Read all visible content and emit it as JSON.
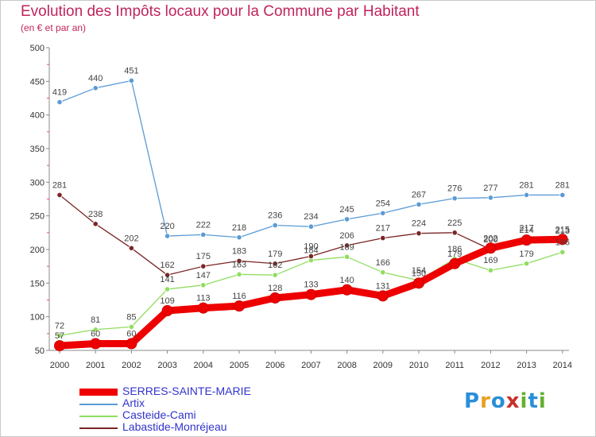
{
  "title": "Evolution des Impôts locaux pour la Commune par Habitant",
  "subtitle": "(en € et par an)",
  "logo": {
    "text": "Proxiti",
    "letters": [
      "P",
      "r",
      "o",
      "x",
      "i",
      "t",
      "i"
    ],
    "colors": [
      "#2a8fd8",
      "#e8a020",
      "#2a8fd8",
      "#c8302a",
      "#64b030",
      "#2a8fd8",
      "#64b030"
    ]
  },
  "chart_data": {
    "type": "line",
    "title": "Evolution des Impôts locaux pour la Commune par Habitant",
    "subtitle": "(en € et par an)",
    "xlabel": "",
    "ylabel": "",
    "ylim": [
      50,
      500
    ],
    "yticks": [
      "50",
      "100",
      "150",
      "200",
      "250",
      "300",
      "350",
      "400",
      "450",
      "500"
    ],
    "x": [
      "2000",
      "2001",
      "2002",
      "2003",
      "2004",
      "2005",
      "2006",
      "2007",
      "2008",
      "2009",
      "2010",
      "2011",
      "2012",
      "2013",
      "2014"
    ],
    "grid": false,
    "legend_position": "bottom-left",
    "series": [
      {
        "name": "Artix",
        "color": "#5b9bd5",
        "values": [
          419,
          440,
          451,
          220,
          222,
          218,
          236,
          234,
          245,
          254,
          267,
          276,
          277,
          281,
          281
        ],
        "labels": [
          "419",
          "440",
          "451",
          "220",
          "222",
          "218",
          "236",
          "234",
          "245",
          "254",
          "267",
          "276",
          "277",
          "281",
          "281"
        ]
      },
      {
        "name": "Casteide-Cami",
        "color": "#90dd60",
        "values": [
          72,
          81,
          85,
          141,
          147,
          163,
          162,
          184,
          189,
          166,
          154,
          186,
          169,
          179,
          196
        ],
        "labels": [
          "72",
          "81",
          "85",
          "141",
          "147",
          "163",
          "162",
          "184",
          "189",
          "166",
          "154",
          "186",
          "169",
          "179",
          "196"
        ]
      },
      {
        "name": "Labastide-Monréjeau",
        "color": "#7a2525",
        "values": [
          281,
          238,
          202,
          162,
          175,
          183,
          179,
          190,
          206,
          217,
          224,
          225,
          200,
          217,
          213
        ],
        "labels": [
          "281",
          "238",
          "202",
          "162",
          "175",
          "183",
          "179",
          "190",
          "206",
          "217",
          "224",
          "225",
          "200",
          "217",
          "213"
        ]
      },
      {
        "name": "SERRES-SAINTE-MARIE",
        "color": "#ee0000",
        "values": [
          57,
          60,
          60,
          109,
          113,
          116,
          128,
          133,
          140,
          131,
          150,
          179,
          202,
          214,
          215
        ],
        "labels": [
          "57",
          "60",
          "60",
          "109",
          "113",
          "116",
          "128",
          "133",
          "140",
          "131",
          "150",
          "179",
          "202",
          "214",
          "215"
        ]
      }
    ]
  },
  "legend": [
    {
      "label": "SERRES-SAINTE-MARIE",
      "color": "#ee0000"
    },
    {
      "label": "Artix",
      "color": "#5b9bd5"
    },
    {
      "label": "Casteide-Cami",
      "color": "#90dd60"
    },
    {
      "label": "Labastide-Monréjeau",
      "color": "#7a2525"
    }
  ]
}
